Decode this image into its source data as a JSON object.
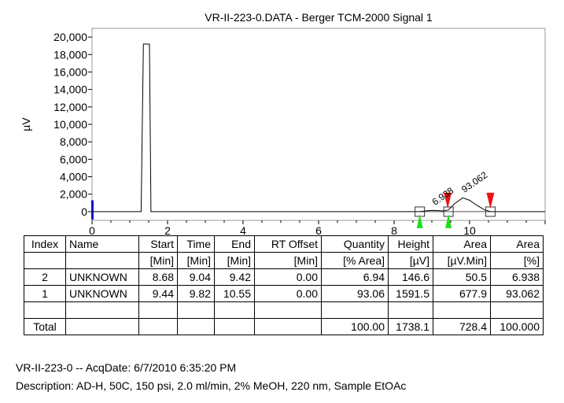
{
  "chart_data": {
    "type": "line",
    "title": "VR-II-223-0.DATA - Berger TCM-2000 Signal 1",
    "xlabel": "",
    "ylabel": "µV",
    "xlim": [
      0,
      12
    ],
    "ylim": [
      -1000,
      21000
    ],
    "x_ticks": [
      "0",
      "2",
      "4",
      "6",
      "8",
      "10"
    ],
    "y_ticks": [
      "0",
      "2,000",
      "4,000",
      "6,000",
      "8,000",
      "10,000",
      "12,000",
      "14,000",
      "16,000",
      "18,000",
      "20,000"
    ],
    "series": [
      {
        "x": [
          0.0,
          1.3,
          1.36,
          1.4,
          1.52,
          1.56,
          1.62,
          2.0,
          4.0,
          6.0,
          8.0,
          8.68,
          8.9,
          9.04,
          9.3,
          9.44,
          9.6,
          9.82,
          10.0,
          10.2,
          10.4,
          10.55,
          12.0
        ],
        "y": [
          0,
          0,
          19200,
          19200,
          19200,
          0,
          0,
          0,
          0,
          0,
          0,
          0,
          120,
          147,
          80,
          200,
          900,
          1592,
          1300,
          700,
          200,
          0,
          0
        ]
      }
    ],
    "peak_labels": [
      {
        "x": 9.04,
        "y": 147,
        "text": "6.938"
      },
      {
        "x": 9.82,
        "y": 1592,
        "text": "93.062"
      }
    ],
    "baseline_markers": [
      8.68,
      9.44,
      10.55
    ],
    "start_markers": [
      8.68,
      9.44
    ],
    "end_markers": [
      9.42,
      10.55
    ]
  },
  "table": {
    "headers": [
      "Index",
      "Name",
      "Start",
      "Time",
      "End",
      "RT Offset",
      "Quantity",
      "Height",
      "Area",
      "Area"
    ],
    "units": [
      "",
      "",
      "[Min]",
      "[Min]",
      "[Min]",
      "[Min]",
      "[% Area]",
      "[µV]",
      "[µV.Min]",
      "[%]"
    ],
    "rows": [
      [
        "2",
        "UNKNOWN",
        "8.68",
        "9.04",
        "9.42",
        "0.00",
        "6.94",
        "146.6",
        "50.5",
        "6.938"
      ],
      [
        "1",
        "UNKNOWN",
        "9.44",
        "9.82",
        "10.55",
        "0.00",
        "93.06",
        "1591.5",
        "677.9",
        "93.062"
      ],
      [
        "",
        "",
        "",
        "",
        "",
        "",
        "",
        "",
        "",
        ""
      ],
      [
        "Total",
        "",
        "",
        "",
        "",
        "",
        "100.00",
        "1738.1",
        "728.4",
        "100.000"
      ]
    ]
  },
  "footer": {
    "line1": "VR-II-223-0 -- AcqDate: 6/7/2010 6:35:20 PM",
    "line2": "Description: AD-H, 50C, 150 psi, 2.0 ml/min, 2% MeOH, 220 nm, Sample EtOAc"
  },
  "colors": {
    "trace": "#000000",
    "start_marker": "#1ee01e",
    "end_marker": "#ee1111",
    "y_axis_marker": "#1010d0"
  }
}
